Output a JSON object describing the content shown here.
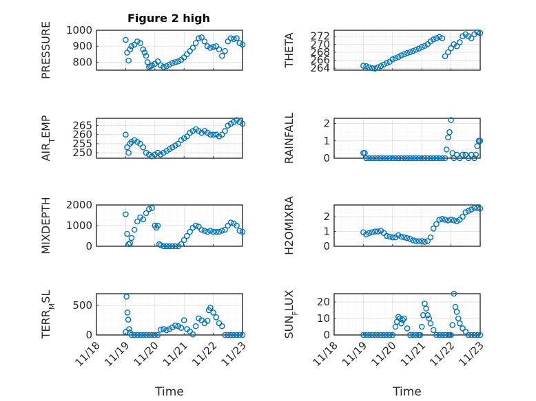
{
  "figure": {
    "title": "Figure 2 high",
    "marker_color": "#0072BD"
  },
  "time_axis": {
    "label": "Time",
    "tick_labels": [
      "11/18",
      "11/19",
      "11/20",
      "11/21",
      "11/22",
      "11/23"
    ],
    "tick_days": [
      18,
      19,
      20,
      21,
      22,
      23
    ],
    "range": [
      18,
      23
    ]
  },
  "chart_data": [
    {
      "type": "scatter",
      "id": "pressure",
      "ylabel": "PRESSURE",
      "ylim": [
        750,
        1000
      ],
      "yticks": [
        800,
        900,
        1000
      ],
      "x": [
        19.0,
        19.05,
        19.1,
        19.15,
        19.2,
        19.3,
        19.4,
        19.5,
        19.6,
        19.65,
        19.7,
        19.75,
        19.8,
        19.85,
        19.9,
        20.0,
        20.1,
        20.2,
        20.3,
        20.4,
        20.5,
        20.6,
        20.7,
        20.8,
        20.9,
        21.0,
        21.1,
        21.2,
        21.3,
        21.4,
        21.5,
        21.6,
        21.7,
        21.8,
        21.9,
        22.0,
        22.1,
        22.2,
        22.3,
        22.4,
        22.5,
        22.6,
        22.7,
        22.8,
        22.9,
        23.0
      ],
      "y": [
        940,
        860,
        810,
        880,
        900,
        910,
        930,
        920,
        880,
        860,
        840,
        800,
        770,
        775,
        780,
        790,
        805,
        780,
        770,
        775,
        785,
        795,
        800,
        805,
        815,
        830,
        850,
        870,
        890,
        920,
        950,
        955,
        930,
        900,
        890,
        895,
        900,
        880,
        840,
        870,
        930,
        950,
        945,
        950,
        920,
        910
      ]
    },
    {
      "type": "scatter",
      "id": "theta",
      "ylabel": "THETA",
      "ylim": [
        263.5,
        273.5
      ],
      "yticks": [
        264,
        266,
        268,
        270,
        272
      ],
      "x": [
        19.0,
        19.1,
        19.2,
        19.3,
        19.4,
        19.5,
        19.6,
        19.7,
        19.8,
        19.9,
        20.0,
        20.1,
        20.2,
        20.3,
        20.4,
        20.5,
        20.6,
        20.7,
        20.8,
        20.9,
        21.0,
        21.1,
        21.2,
        21.3,
        21.4,
        21.5,
        21.6,
        21.7,
        21.8,
        21.9,
        22.0,
        22.1,
        22.2,
        22.3,
        22.4,
        22.5,
        22.6,
        22.7,
        22.8,
        22.9,
        23.0
      ],
      "y": [
        264.6,
        264.5,
        264.2,
        264.0,
        263.9,
        264.2,
        264.5,
        264.9,
        265.3,
        265.6,
        266.2,
        266.5,
        266.8,
        267.2,
        267.5,
        267.8,
        268.0,
        268.3,
        268.6,
        268.9,
        269.3,
        269.6,
        270.0,
        270.7,
        271.2,
        271.5,
        271.8,
        271.5,
        267.0,
        268.0,
        269.0,
        270.0,
        269.5,
        270.5,
        272.0,
        272.5,
        272.0,
        271.5,
        272.5,
        273.0,
        272.8
      ]
    },
    {
      "type": "scatter",
      "id": "air_temp",
      "ylabel": "AIR_TEMP",
      "ylim": [
        247,
        269
      ],
      "yticks": [
        250,
        255,
        260,
        265
      ],
      "x": [
        19.0,
        19.05,
        19.1,
        19.15,
        19.2,
        19.3,
        19.4,
        19.5,
        19.6,
        19.7,
        19.8,
        19.9,
        20.0,
        20.1,
        20.2,
        20.3,
        20.4,
        20.5,
        20.6,
        20.7,
        20.8,
        20.9,
        21.0,
        21.1,
        21.2,
        21.3,
        21.4,
        21.5,
        21.6,
        21.7,
        21.8,
        21.9,
        22.0,
        22.1,
        22.2,
        22.3,
        22.4,
        22.5,
        22.6,
        22.7,
        22.8,
        22.9,
        23.0
      ],
      "y": [
        260,
        253,
        250,
        255,
        256,
        257,
        256,
        255,
        253,
        250,
        249,
        248,
        249,
        250,
        249,
        250,
        251,
        252,
        253,
        254,
        255,
        257,
        258,
        259,
        261,
        262,
        263,
        262,
        261,
        262,
        261,
        260,
        260,
        260,
        259,
        260,
        262,
        265,
        266,
        267,
        268,
        267,
        266
      ]
    },
    {
      "type": "scatter",
      "id": "rainfall",
      "ylabel": "RAINFALL",
      "ylim": [
        0,
        2.3
      ],
      "yticks": [
        0,
        1,
        2
      ],
      "x": [
        19.0,
        19.05,
        19.1,
        19.2,
        19.3,
        19.4,
        19.5,
        19.6,
        19.7,
        19.8,
        19.9,
        20.0,
        20.1,
        20.2,
        20.3,
        20.4,
        20.5,
        20.6,
        20.7,
        20.8,
        20.9,
        21.0,
        21.1,
        21.2,
        21.3,
        21.4,
        21.5,
        21.6,
        21.7,
        21.8,
        21.85,
        21.9,
        21.95,
        22.0,
        22.05,
        22.1,
        22.2,
        22.3,
        22.4,
        22.5,
        22.6,
        22.7,
        22.8,
        22.85,
        22.9,
        22.95,
        23.0
      ],
      "y": [
        0.3,
        0.3,
        0,
        0,
        0,
        0,
        0,
        0,
        0,
        0,
        0,
        0,
        0,
        0,
        0,
        0,
        0,
        0,
        0,
        0,
        0,
        0,
        0,
        0,
        0,
        0,
        0,
        0,
        0,
        0,
        0.5,
        1.2,
        1.5,
        2.2,
        0.3,
        0,
        0.2,
        0,
        0.2,
        0.2,
        0,
        0.2,
        0,
        0.2,
        0.7,
        1.0,
        1.0
      ]
    },
    {
      "type": "scatter",
      "id": "mixdepth",
      "ylabel": "MIXDEPTH",
      "ylim": [
        0,
        2000
      ],
      "yticks": [
        0,
        1000,
        2000
      ],
      "x": [
        19.0,
        19.05,
        19.1,
        19.15,
        19.2,
        19.3,
        19.4,
        19.5,
        19.6,
        19.7,
        19.8,
        19.9,
        20.0,
        20.05,
        20.1,
        20.15,
        20.2,
        20.3,
        20.4,
        20.5,
        20.6,
        20.7,
        20.8,
        20.9,
        21.0,
        21.1,
        21.2,
        21.3,
        21.4,
        21.5,
        21.6,
        21.7,
        21.8,
        21.9,
        22.0,
        22.1,
        22.2,
        22.3,
        22.4,
        22.5,
        22.6,
        22.7,
        22.8,
        22.9,
        23.0
      ],
      "y": [
        1550,
        600,
        100,
        150,
        400,
        800,
        1200,
        1400,
        1300,
        1600,
        1800,
        1850,
        1000,
        900,
        1000,
        100,
        50,
        0,
        0,
        0,
        0,
        0,
        0,
        100,
        300,
        500,
        700,
        900,
        1000,
        950,
        800,
        750,
        700,
        750,
        700,
        700,
        700,
        750,
        800,
        1000,
        1150,
        1100,
        1000,
        750,
        700
      ]
    },
    {
      "type": "scatter",
      "id": "h2omixra",
      "ylabel": "H2OMIXRA",
      "ylim": [
        0,
        2.8
      ],
      "yticks": [
        0,
        1,
        2
      ],
      "x": [
        19.0,
        19.1,
        19.2,
        19.3,
        19.4,
        19.5,
        19.6,
        19.7,
        19.8,
        19.9,
        20.0,
        20.1,
        20.2,
        20.3,
        20.4,
        20.5,
        20.6,
        20.7,
        20.8,
        20.9,
        21.0,
        21.1,
        21.2,
        21.3,
        21.4,
        21.5,
        21.6,
        21.7,
        21.8,
        21.9,
        22.0,
        22.1,
        22.2,
        22.3,
        22.4,
        22.5,
        22.6,
        22.7,
        22.8,
        22.9,
        23.0
      ],
      "y": [
        0.95,
        0.8,
        0.9,
        0.95,
        1.0,
        1.0,
        1.05,
        0.9,
        0.7,
        0.65,
        0.6,
        0.6,
        0.75,
        0.65,
        0.6,
        0.55,
        0.5,
        0.4,
        0.35,
        0.35,
        0.35,
        0.3,
        0.35,
        0.6,
        1.2,
        1.5,
        1.8,
        1.85,
        1.8,
        1.75,
        1.8,
        1.75,
        1.7,
        1.8,
        2.0,
        2.3,
        2.4,
        2.5,
        2.6,
        2.6,
        2.55
      ]
    },
    {
      "type": "scatter",
      "id": "terr_msl",
      "ylabel": "TERR_MSL",
      "ylim": [
        0,
        700
      ],
      "yticks": [
        0,
        500
      ],
      "x": [
        19.0,
        19.03,
        19.06,
        19.09,
        19.12,
        19.15,
        19.2,
        19.3,
        19.4,
        19.5,
        19.6,
        19.7,
        19.8,
        19.9,
        20.0,
        20.1,
        20.2,
        20.3,
        20.4,
        20.5,
        20.6,
        20.7,
        20.8,
        20.9,
        21.0,
        21.1,
        21.2,
        21.3,
        21.4,
        21.5,
        21.6,
        21.7,
        21.8,
        21.85,
        21.9,
        22.0,
        22.1,
        22.2,
        22.3,
        22.4,
        22.5,
        22.6,
        22.7,
        22.8,
        22.9,
        23.0
      ],
      "y": [
        50,
        650,
        380,
        260,
        100,
        40,
        0,
        0,
        0,
        0,
        0,
        0,
        0,
        0,
        0,
        0,
        90,
        100,
        80,
        100,
        130,
        160,
        150,
        120,
        250,
        100,
        60,
        10,
        150,
        280,
        250,
        200,
        240,
        420,
        460,
        380,
        300,
        200,
        150,
        0,
        0,
        0,
        0,
        0,
        0,
        0
      ]
    },
    {
      "type": "scatter",
      "id": "sun_flux",
      "ylabel": "SUN_FLUX",
      "ylim": [
        0,
        25
      ],
      "yticks": [
        0,
        10,
        20
      ],
      "x": [
        19.0,
        19.1,
        19.2,
        19.3,
        19.4,
        19.5,
        19.6,
        19.7,
        19.8,
        19.9,
        20.0,
        20.1,
        20.15,
        20.2,
        20.25,
        20.3,
        20.35,
        20.4,
        20.5,
        20.6,
        20.7,
        20.8,
        20.9,
        20.95,
        21.0,
        21.05,
        21.1,
        21.15,
        21.2,
        21.25,
        21.3,
        21.4,
        21.5,
        21.6,
        21.7,
        21.8,
        21.9,
        21.95,
        22.0,
        22.05,
        22.1,
        22.15,
        22.2,
        22.25,
        22.3,
        22.4,
        22.5,
        22.6,
        22.7,
        22.8,
        22.9,
        23.0
      ],
      "y": [
        0,
        0,
        0,
        0,
        0,
        0,
        0,
        0,
        0,
        0,
        0,
        5,
        8,
        11,
        10,
        7,
        9,
        10,
        4,
        0,
        0,
        0,
        0,
        0,
        5,
        12,
        19,
        16,
        12,
        10,
        7,
        3,
        0,
        0,
        0,
        0,
        0,
        0,
        0,
        6,
        25,
        17,
        14,
        10,
        7,
        4,
        2,
        0,
        0,
        0,
        0,
        0
      ]
    }
  ]
}
